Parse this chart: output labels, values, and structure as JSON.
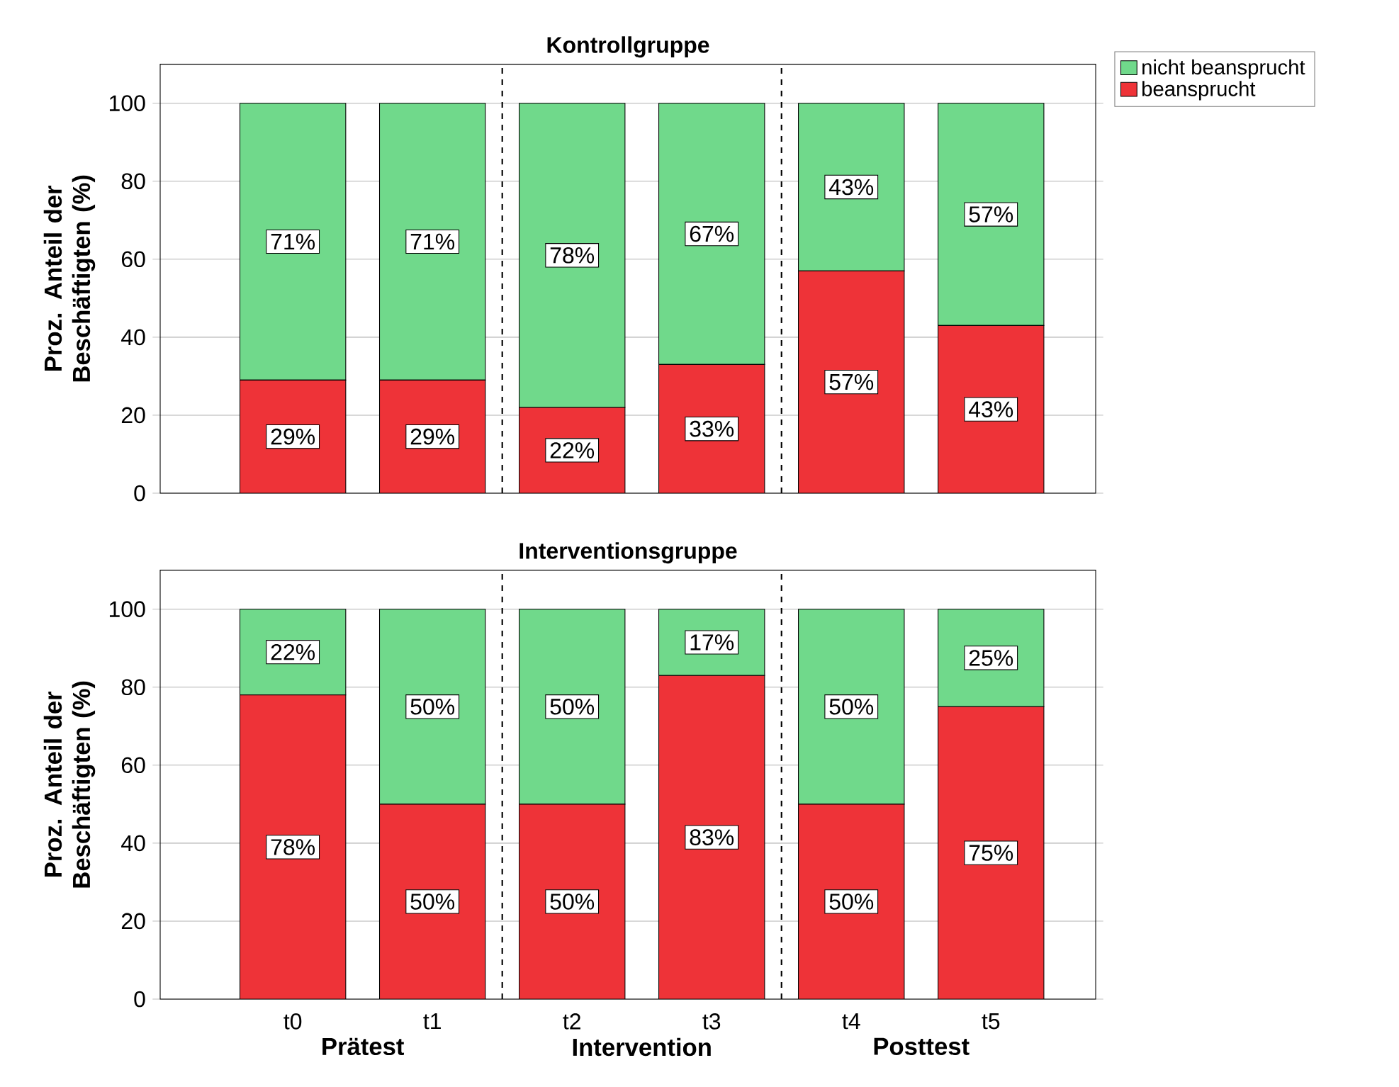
{
  "chart_data": [
    {
      "type": "bar",
      "title": "Kontrollgruppe",
      "ylabel": "Proz. Anteil der Beschäftigten (%)",
      "categories": [
        null,
        null,
        null,
        null,
        null,
        null
      ],
      "stacked": true,
      "ylim": [
        0,
        110
      ],
      "yticks": [
        0,
        20,
        40,
        60,
        80,
        100
      ],
      "grid": "y",
      "legend": "top right",
      "tick_labels": "y",
      "series": [
        {
          "name": "beansprucht",
          "color": "#ee3338",
          "values": [
            29,
            29,
            22,
            33,
            57,
            43
          ],
          "value_labels": [
            "29%",
            "29%",
            "22%",
            "33%",
            "57%",
            "43%"
          ]
        },
        {
          "name": "nicht beansprucht",
          "color": "#70d98b",
          "values": [
            71,
            71,
            78,
            67,
            43,
            57
          ],
          "value_labels": [
            "71%",
            "71%",
            "78%",
            "67%",
            "43%",
            "57%"
          ]
        }
      ]
    },
    {
      "type": "bar",
      "title": "Interventionsgruppe",
      "ylabel": "Proz. Anteil der Beschäftigten (%)",
      "categories": [
        "t0",
        "t1",
        "t2",
        "t3",
        "t4",
        "t5"
      ],
      "stacked": true,
      "ylim": [
        0,
        110
      ],
      "yticks": [
        0,
        20,
        40,
        60,
        80,
        100
      ],
      "grid": "y",
      "series": [
        {
          "color": "#ee3338",
          "values": [
            78,
            50,
            50,
            83,
            50,
            75
          ],
          "value_labels": [
            "78%",
            "50%",
            "50%",
            "83%",
            "50%",
            "75%"
          ]
        },
        {
          "color": "#70d98b",
          "values": [
            22,
            50,
            50,
            17,
            50,
            25
          ],
          "value_labels": [
            "22%",
            "50%",
            "50%",
            "17%",
            "50%",
            "25%"
          ]
        }
      ],
      "annotations": [
        "Prätest",
        "Intervention",
        "Posttest"
      ]
    }
  ]
}
